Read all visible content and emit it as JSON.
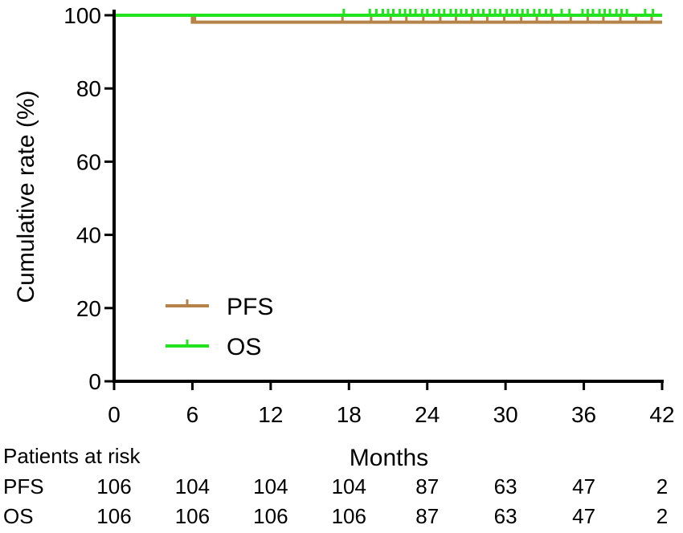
{
  "chart_data": {
    "type": "line",
    "title": "",
    "xlabel": "Months",
    "ylabel": "Cumulative rate (%)",
    "xlim": [
      0,
      42
    ],
    "ylim": [
      0,
      100
    ],
    "x_ticks": [
      "0",
      "6",
      "12",
      "18",
      "24",
      "30",
      "36",
      "42"
    ],
    "y_ticks": [
      "0",
      "20",
      "40",
      "60",
      "80",
      "100"
    ],
    "grid": false,
    "legend_position": "lower-left",
    "series": [
      {
        "name": "PFS",
        "color": "#b5834a",
        "steps": [
          [
            0,
            100
          ],
          [
            6,
            98.1
          ],
          [
            42,
            98.1
          ]
        ],
        "censor_times": [
          6.2,
          17.5,
          19.7,
          21.2,
          22.4,
          23.7,
          25.0,
          26.2,
          27.4,
          28.6,
          29.9,
          31.2,
          32.4,
          33.6,
          35.0,
          36.3,
          37.5,
          38.8,
          40.0,
          41.2
        ]
      },
      {
        "name": "OS",
        "color": "#22e41e",
        "steps": [
          [
            0,
            100
          ],
          [
            42,
            100
          ]
        ],
        "censor_times": [
          17.6,
          19.6,
          20.1,
          20.6,
          21.0,
          21.4,
          21.9,
          22.3,
          22.7,
          23.1,
          23.6,
          24.0,
          24.5,
          24.9,
          25.3,
          25.8,
          26.2,
          26.6,
          27.0,
          27.5,
          27.9,
          28.3,
          28.8,
          29.2,
          29.6,
          30.1,
          30.5,
          30.9,
          31.3,
          31.7,
          32.2,
          32.6,
          33.1,
          33.5,
          34.3,
          34.9,
          35.9,
          36.3,
          36.7,
          37.2,
          37.6,
          38.0,
          38.5,
          38.9,
          39.3,
          40.7,
          41.3
        ]
      }
    ],
    "risk_table": {
      "header": "Patients at risk",
      "times": [
        0,
        6,
        12,
        18,
        24,
        30,
        36,
        42
      ],
      "rows": [
        {
          "label": "PFS",
          "values": [
            "106",
            "104",
            "104",
            "104",
            "87",
            "63",
            "47",
            "2"
          ]
        },
        {
          "label": "OS",
          "values": [
            "106",
            "106",
            "106",
            "106",
            "87",
            "63",
            "47",
            "2"
          ]
        }
      ]
    }
  }
}
